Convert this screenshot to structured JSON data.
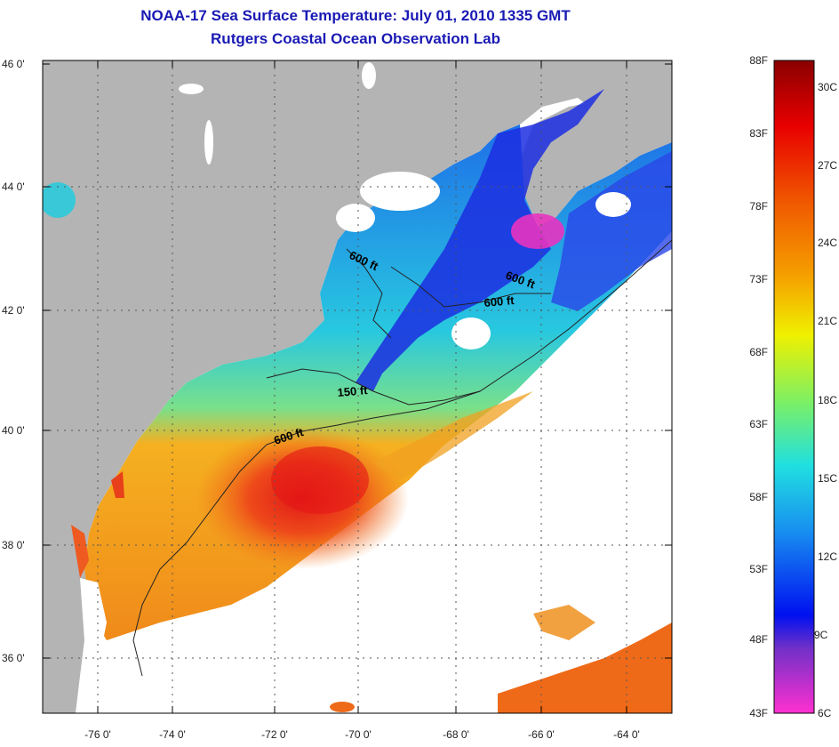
{
  "header": {
    "title": "NOAA-17 Sea Surface Temperature:  July 01, 2010 1335 GMT",
    "subtitle": "Rutgers Coastal Ocean Observation Lab"
  },
  "map": {
    "lat_labels": [
      "46 0'",
      "44 0'",
      "42 0'",
      "40 0'",
      "38 0'",
      "36 0'"
    ],
    "lon_labels": [
      "-76 0'",
      "-74 0'",
      "-72 0'",
      "-70 0'",
      "-68 0'",
      "-66 0'",
      "-64 0'"
    ],
    "contour_labels": [
      "600 ft",
      "600 ft",
      "600 ft",
      "150 ft",
      "600 ft"
    ],
    "colors": {
      "land": "#b4b4b4",
      "cloud": "#ffffff",
      "warm": "#e8401a",
      "cold": "#1a1ae6"
    }
  },
  "colorbar": {
    "fahrenheit": [
      "88F",
      "83F",
      "78F",
      "73F",
      "68F",
      "63F",
      "58F",
      "53F",
      "48F",
      "43F"
    ],
    "celsius": [
      "30C",
      "27C",
      "24C",
      "21C",
      "18C",
      "15C",
      "12C",
      "9C",
      "6C"
    ]
  }
}
